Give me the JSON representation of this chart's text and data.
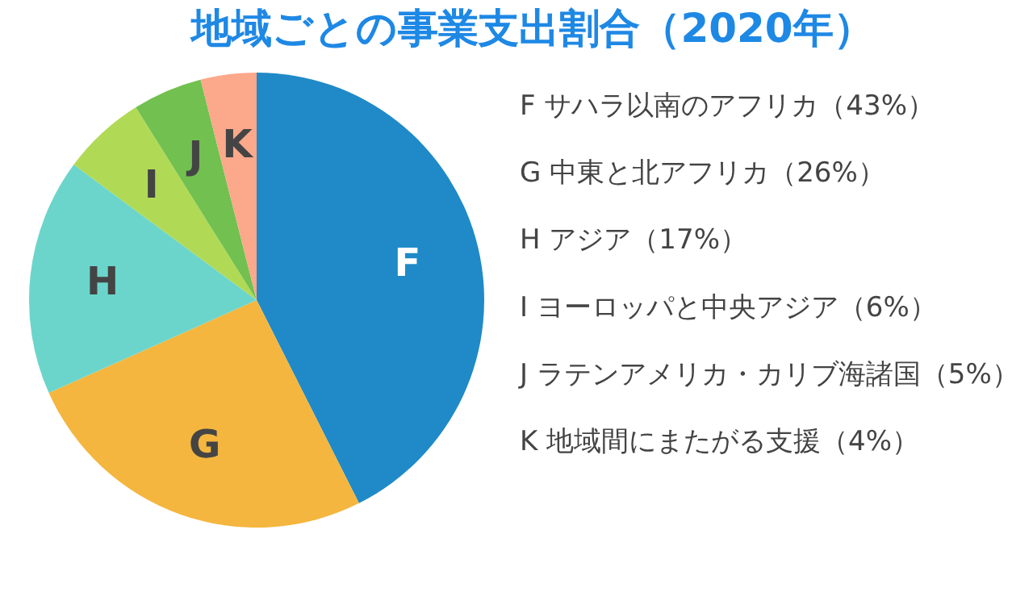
{
  "chart_data": {
    "type": "pie",
    "title": "地域ごとの事業支出割合（2020年）",
    "categories": [
      "F",
      "G",
      "H",
      "I",
      "J",
      "K"
    ],
    "values": [
      43,
      26,
      17,
      6,
      5,
      4
    ],
    "colors": [
      "#1f8ac7",
      "#f4b63e",
      "#6cd5cb",
      "#b0da55",
      "#72c04f",
      "#fca88b"
    ],
    "annotations": [
      "サハラ以南のアフリカ（43%）",
      "中東と北アフリカ（26%）",
      "アジア（17%）",
      "ヨーロッパと中央アジア（6%）",
      "ラテンアメリカ・カリブ海諸国（5%）",
      "地域間にまたがる支援（4%）"
    ]
  }
}
